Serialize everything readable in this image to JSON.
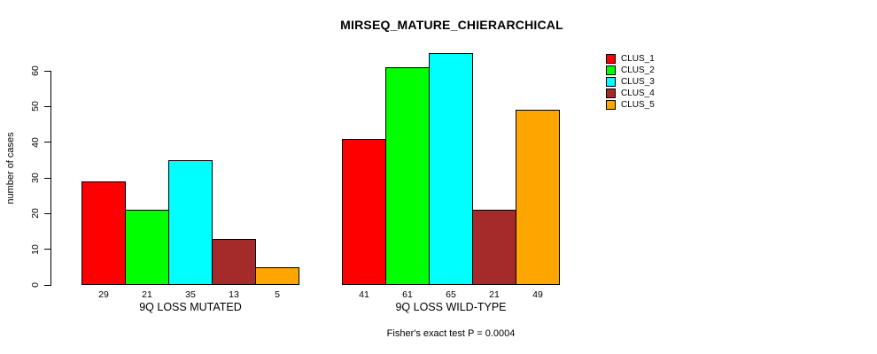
{
  "chart_data": {
    "type": "bar",
    "title": "MIRSEQ_MATURE_CHIERARCHICAL",
    "ylabel": "number of cases",
    "xlabel": "",
    "caption": "Fisher's exact test P = 0.0004",
    "ylim": [
      0,
      65
    ],
    "yticks": [
      0,
      10,
      20,
      30,
      40,
      50,
      60
    ],
    "grid": false,
    "legend_position": "top-right",
    "bar_value_labels": true,
    "categories": [
      "9Q LOSS MUTATED",
      "9Q LOSS WILD-TYPE"
    ],
    "series": [
      {
        "name": "CLUS_1",
        "color": "#FF0000",
        "values": [
          29,
          41
        ]
      },
      {
        "name": "CLUS_2",
        "color": "#00FF00",
        "values": [
          21,
          61
        ]
      },
      {
        "name": "CLUS_3",
        "color": "#00FFFF",
        "values": [
          35,
          65
        ]
      },
      {
        "name": "CLUS_4",
        "color": "#A52A2A",
        "values": [
          13,
          21
        ]
      },
      {
        "name": "CLUS_5",
        "color": "#FFA500",
        "values": [
          5,
          49
        ]
      }
    ]
  }
}
